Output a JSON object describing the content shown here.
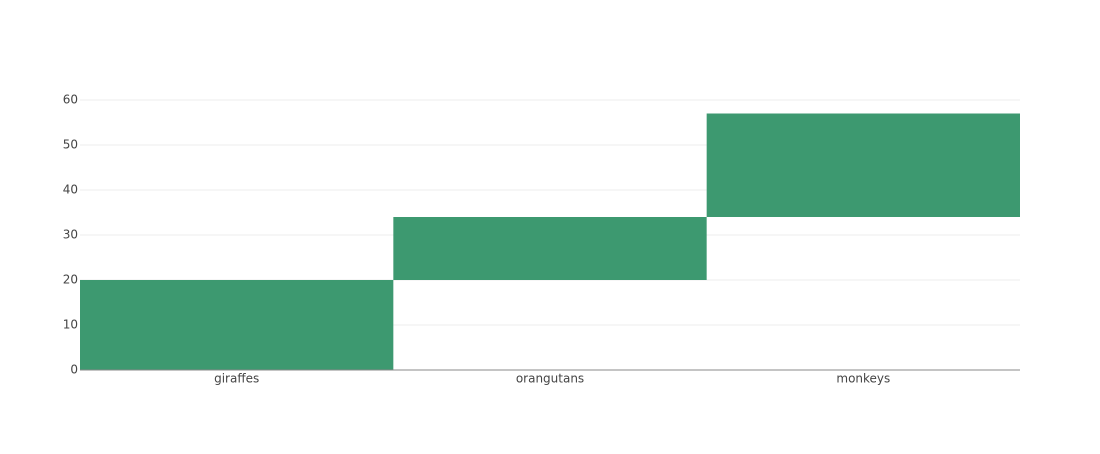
{
  "chart_data": {
    "type": "waterfall",
    "categories": [
      "giraffes",
      "orangutans",
      "monkeys"
    ],
    "values": [
      20,
      14,
      23
    ],
    "color": "#3d9970",
    "ylim": [
      0,
      60
    ],
    "yticks": [
      0,
      10,
      20,
      30,
      40,
      50,
      60
    ],
    "grid": true
  }
}
